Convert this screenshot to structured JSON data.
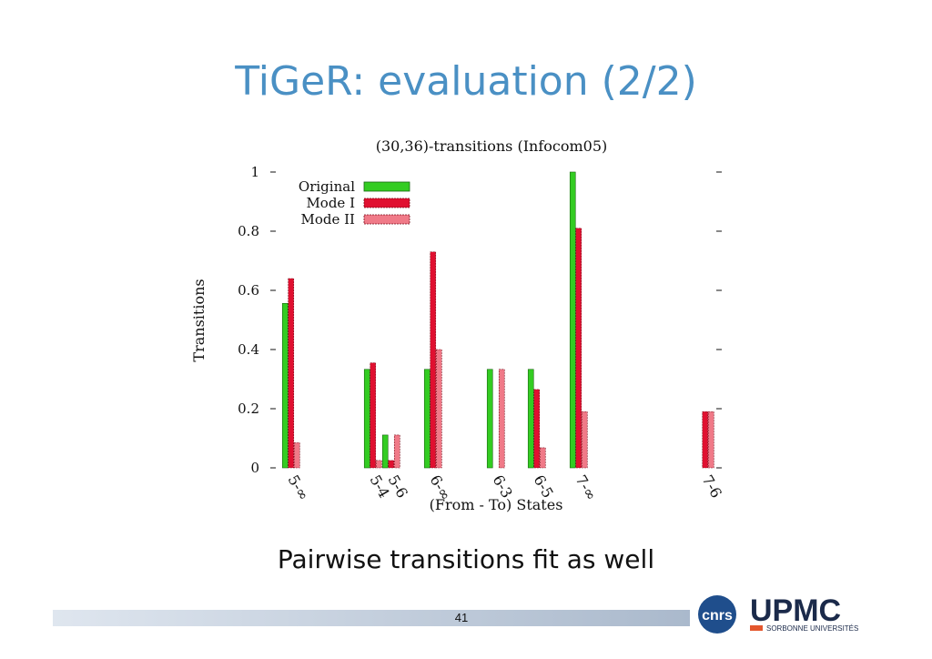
{
  "slide": {
    "title": "TiGeR: evaluation (2/2)",
    "caption": "Pairwise transitions fit as well",
    "page_number": "41"
  },
  "chart_data": {
    "type": "bar",
    "title": "(30,36)-transitions (Infocom05)",
    "xlabel": "(From - To) States",
    "ylabel": "Transitions",
    "ylim": [
      0,
      1
    ],
    "yticks": [
      "0",
      "0.2",
      "0.4",
      "0.6",
      "0.8",
      "1"
    ],
    "legend": "top-left",
    "grid": false,
    "categories": [
      "5-∞",
      "5-4",
      "5-6",
      "6-∞",
      "6-3",
      "6-5",
      "7-∞",
      "7-6"
    ],
    "series": [
      {
        "name": "Original",
        "color": "#33cc22",
        "values": [
          0.556,
          0.333,
          0.111,
          0.333,
          0.333,
          0.333,
          1.0,
          0
        ]
      },
      {
        "name": "Mode I",
        "color": "#e01030",
        "values": [
          0.64,
          0.355,
          0.025,
          0.73,
          0,
          0.265,
          0.81,
          0.19
        ]
      },
      {
        "name": "Mode II",
        "color": "#f07a88",
        "values": [
          0.085,
          0.025,
          0.111,
          0.4,
          0.333,
          0.068,
          0.19,
          0.19
        ]
      }
    ]
  },
  "logos": {
    "cnrs": "cnrs",
    "upmc": "UPMC",
    "upmc_sub": "SORBONNE UNIVERSITÉS",
    "colors": {
      "cnrs_blue": "#1f4e8c",
      "upmc_dark": "#1b2a4a",
      "upmc_accent": "#e4572e"
    }
  }
}
